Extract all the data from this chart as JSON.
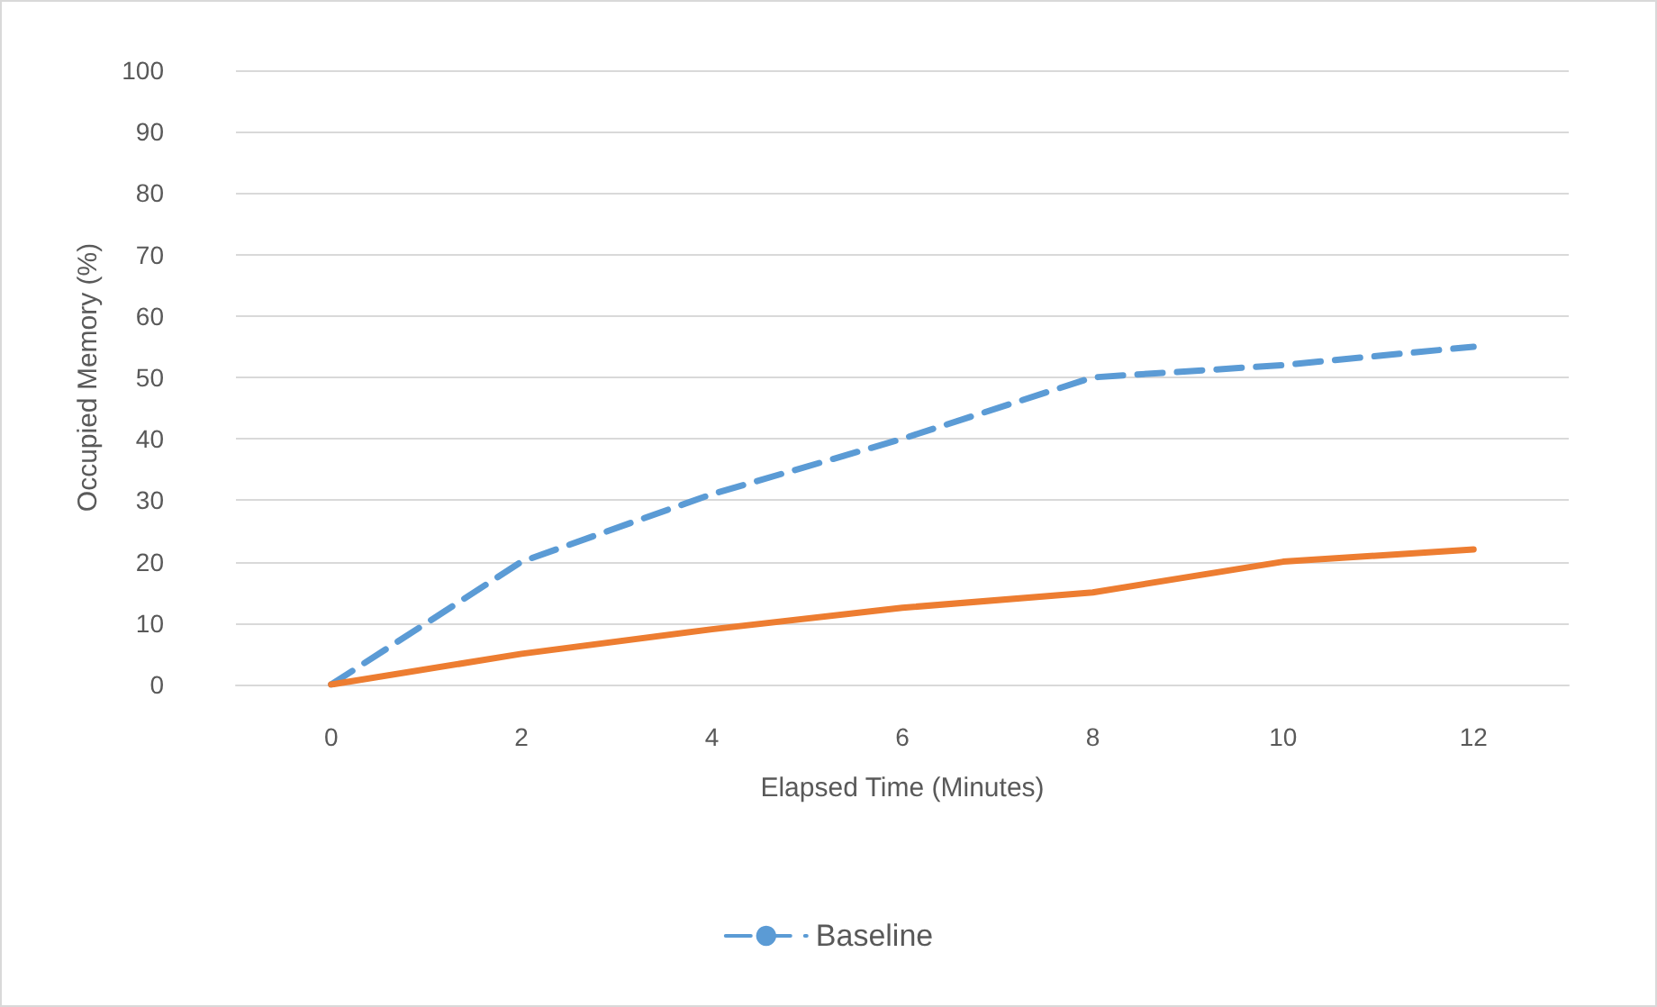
{
  "chart_data": {
    "type": "line",
    "xlabel": "Elapsed Time (Minutes)",
    "ylabel": "Occupied Memory (%)",
    "categories": [
      "0",
      "2",
      "4",
      "6",
      "8",
      "10",
      "12"
    ],
    "series": [
      {
        "name": "Baseline",
        "color": "#5b9bd5",
        "line_style": "dashed",
        "values": [
          0,
          20,
          31,
          40,
          50,
          52,
          55
        ]
      },
      {
        "color": "#ed7d31",
        "line_style": "solid",
        "values": [
          0,
          5,
          9,
          12.5,
          15,
          20,
          22
        ]
      }
    ],
    "ylim": [
      0,
      100
    ],
    "yticks": [
      0,
      10,
      20,
      30,
      40,
      50,
      60,
      70,
      80,
      90,
      100
    ],
    "grid": "y",
    "legend": "bottom",
    "marker": "none"
  }
}
